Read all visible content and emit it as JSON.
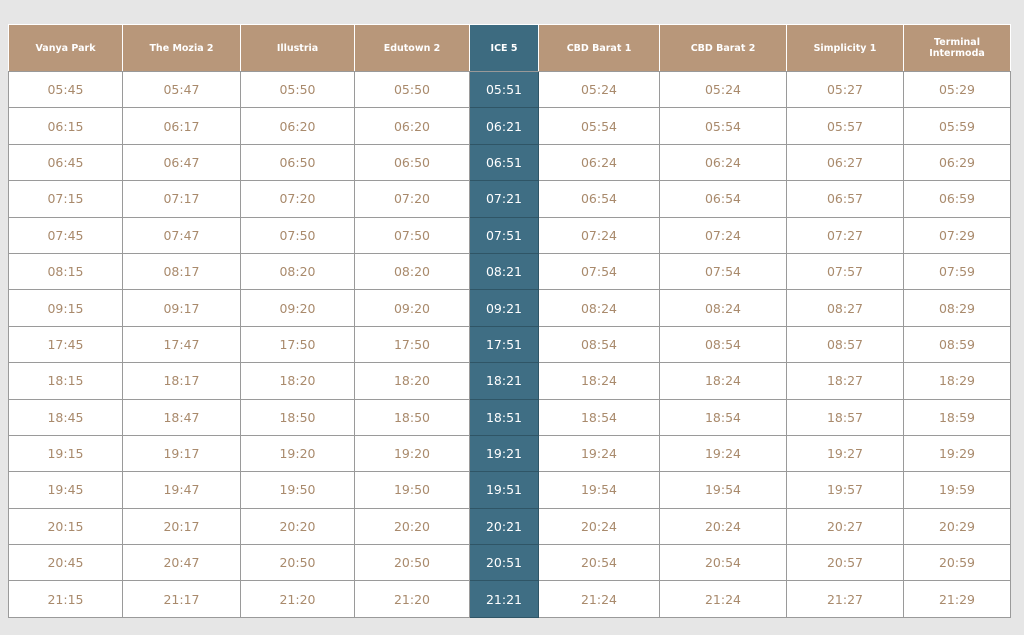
{
  "table": {
    "headers": [
      "Vanya Park",
      "The Mozia 2",
      "Illustria",
      "Edutown 2",
      "ICE 5",
      "CBD Barat 1",
      "CBD Barat 2",
      "Simplicity 1",
      "Terminal Intermoda"
    ],
    "rows": [
      [
        "05:45",
        "05:47",
        "05:50",
        "05:50",
        "05:51",
        "05:24",
        "05:24",
        "05:27",
        "05:29"
      ],
      [
        "06:15",
        "06:17",
        "06:20",
        "06:20",
        "06:21",
        "05:54",
        "05:54",
        "05:57",
        "05:59"
      ],
      [
        "06:45",
        "06:47",
        "06:50",
        "06:50",
        "06:51",
        "06:24",
        "06:24",
        "06:27",
        "06:29"
      ],
      [
        "07:15",
        "07:17",
        "07:20",
        "07:20",
        "07:21",
        "06:54",
        "06:54",
        "06:57",
        "06:59"
      ],
      [
        "07:45",
        "07:47",
        "07:50",
        "07:50",
        "07:51",
        "07:24",
        "07:24",
        "07:27",
        "07:29"
      ],
      [
        "08:15",
        "08:17",
        "08:20",
        "08:20",
        "08:21",
        "07:54",
        "07:54",
        "07:57",
        "07:59"
      ],
      [
        "09:15",
        "09:17",
        "09:20",
        "09:20",
        "09:21",
        "08:24",
        "08:24",
        "08:27",
        "08:29"
      ],
      [
        "17:45",
        "17:47",
        "17:50",
        "17:50",
        "17:51",
        "08:54",
        "08:54",
        "08:57",
        "08:59"
      ],
      [
        "18:15",
        "18:17",
        "18:20",
        "18:20",
        "18:21",
        "18:24",
        "18:24",
        "18:27",
        "18:29"
      ],
      [
        "18:45",
        "18:47",
        "18:50",
        "18:50",
        "18:51",
        "18:54",
        "18:54",
        "18:57",
        "18:59"
      ],
      [
        "19:15",
        "19:17",
        "19:20",
        "19:20",
        "19:21",
        "19:24",
        "19:24",
        "19:27",
        "19:29"
      ],
      [
        "19:45",
        "19:47",
        "19:50",
        "19:50",
        "19:51",
        "19:54",
        "19:54",
        "19:57",
        "19:59"
      ],
      [
        "20:15",
        "20:17",
        "20:20",
        "20:20",
        "20:21",
        "20:24",
        "20:24",
        "20:27",
        "20:29"
      ],
      [
        "20:45",
        "20:47",
        "20:50",
        "20:50",
        "20:51",
        "20:54",
        "20:54",
        "20:57",
        "20:59"
      ],
      [
        "21:15",
        "21:17",
        "21:20",
        "21:20",
        "21:21",
        "21:24",
        "21:24",
        "21:27",
        "21:29"
      ]
    ]
  }
}
